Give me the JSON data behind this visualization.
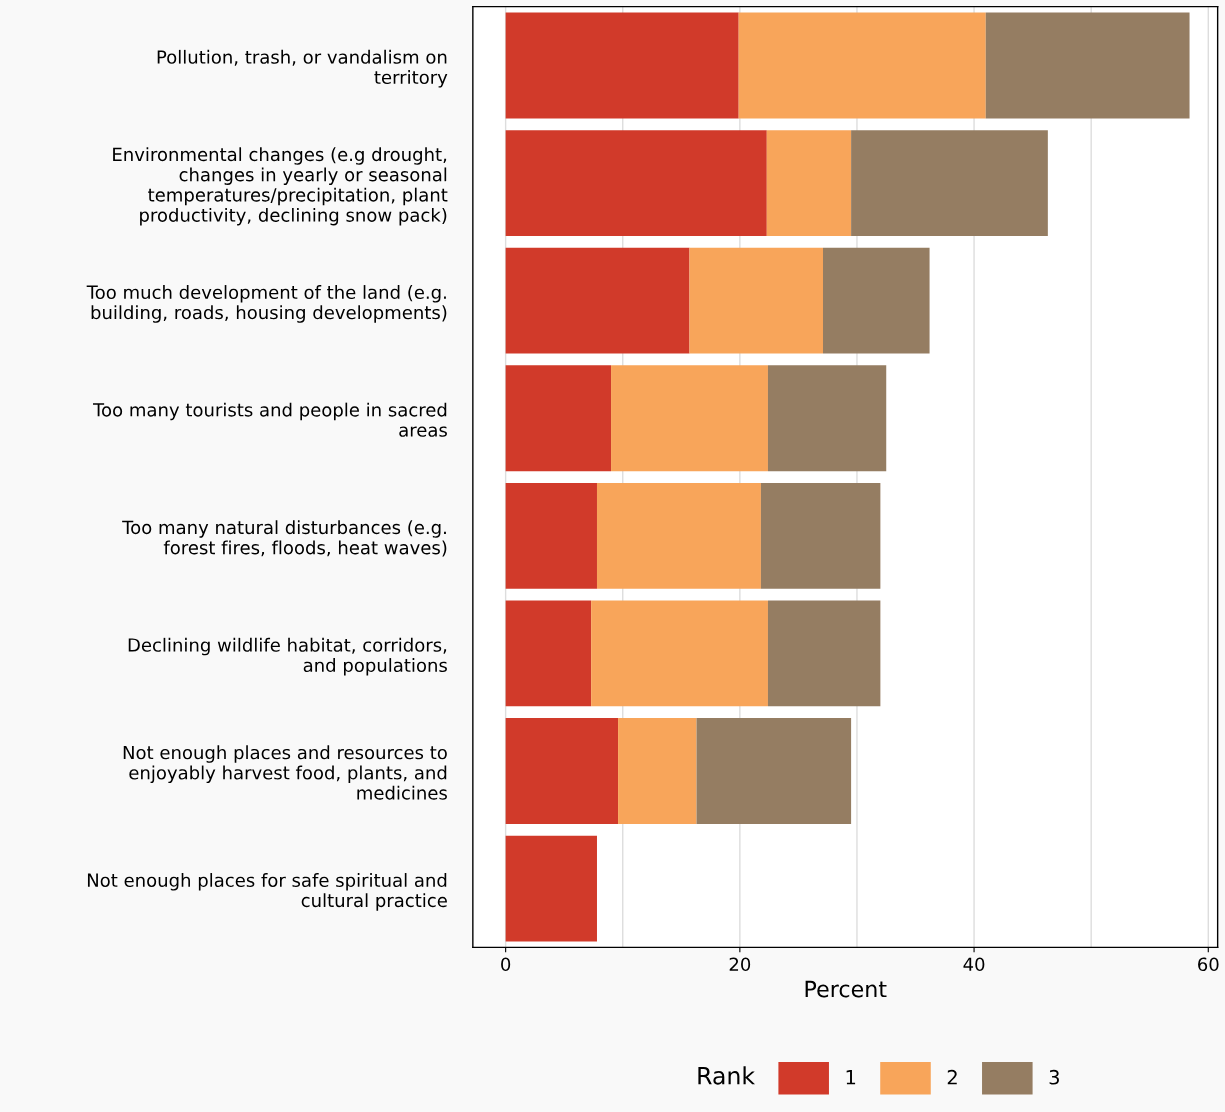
{
  "chart_data": {
    "type": "bar",
    "orientation": "horizontal",
    "stacked": true,
    "categories": [
      "Pollution, trash, or vandalism on\nterritory",
      "Environmental changes (e.g drought,\nchanges in yearly or seasonal\ntemperatures/precipitation, plant\nproductivity, declining snow pack)",
      "Too much development of the land (e.g.\nbuilding, roads, housing developments)",
      "Too many tourists and people in sacred\nareas",
      "Too many natural disturbances (e.g.\nforest fires, floods, heat waves)",
      "Declining wildlife habitat, corridors,\nand populations",
      "Not enough places and resources to\nenjoyably harvest food, plants, and\nmedicines",
      "Not enough places for safe spiritual and\ncultural practice"
    ],
    "series": [
      {
        "name": "1",
        "color": "#d13a2a",
        "values": [
          19.9,
          22.3,
          15.7,
          9.0,
          7.8,
          7.3,
          9.6,
          7.8
        ]
      },
      {
        "name": "2",
        "color": "#f8a55a",
        "values": [
          21.1,
          7.2,
          11.4,
          13.4,
          14.0,
          15.1,
          6.7,
          null
        ]
      },
      {
        "name": "3",
        "color": "#957d62",
        "values": [
          17.4,
          16.8,
          9.1,
          10.1,
          10.2,
          9.6,
          13.2,
          null
        ]
      }
    ],
    "xlabel": "Percent",
    "legend_title": "Rank",
    "legend": "bottom",
    "grid": "x",
    "xlim": [
      -2.8,
      60.8
    ],
    "xticks": [
      0,
      {
        "value": 10,
        "label": null
      },
      20,
      {
        "value": 30,
        "label": null
      },
      40,
      {
        "value": 50,
        "label": null
      },
      60
    ]
  }
}
